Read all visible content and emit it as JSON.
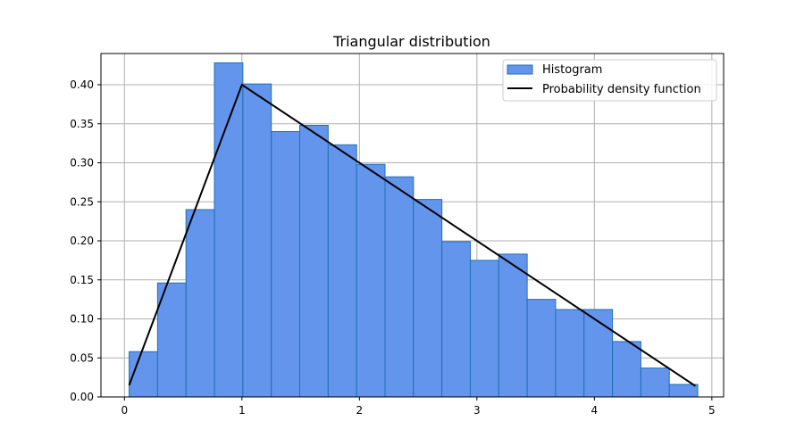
{
  "chart_data": {
    "type": "bar",
    "title": "Triangular distribution",
    "xlabel": "",
    "ylabel": "",
    "xlim": [
      -0.2,
      5.1
    ],
    "ylim": [
      0,
      0.44
    ],
    "grid": true,
    "legend_position": "top-right",
    "x_ticks": [
      0,
      1,
      2,
      3,
      4,
      5
    ],
    "x_tick_labels": [
      "0",
      "1",
      "2",
      "3",
      "4",
      "5"
    ],
    "y_ticks": [
      0.0,
      0.05,
      0.1,
      0.15,
      0.2,
      0.25,
      0.3,
      0.35,
      0.4
    ],
    "y_tick_labels": [
      "0.00",
      "0.05",
      "0.10",
      "0.15",
      "0.20",
      "0.25",
      "0.30",
      "0.35",
      "0.40"
    ],
    "histogram": {
      "name": "Histogram",
      "color": "#6495ED",
      "edge_color": "#1f6fb4",
      "bin_edges": [
        0.04,
        0.282,
        0.524,
        0.766,
        1.008,
        1.25,
        1.492,
        1.734,
        1.976,
        2.218,
        2.46,
        2.702,
        2.944,
        3.186,
        3.428,
        3.67,
        3.912,
        4.154,
        4.396,
        4.638,
        4.88
      ],
      "values": [
        0.058,
        0.146,
        0.24,
        0.428,
        0.401,
        0.34,
        0.348,
        0.323,
        0.298,
        0.282,
        0.253,
        0.199,
        0.175,
        0.183,
        0.125,
        0.112,
        0.112,
        0.071,
        0.037,
        0.016
      ]
    },
    "pdf": {
      "name": "Probability density function",
      "color": "#000000",
      "x": [
        0.04,
        1.0,
        4.86
      ],
      "y": [
        0.015,
        0.4,
        0.014
      ]
    }
  }
}
